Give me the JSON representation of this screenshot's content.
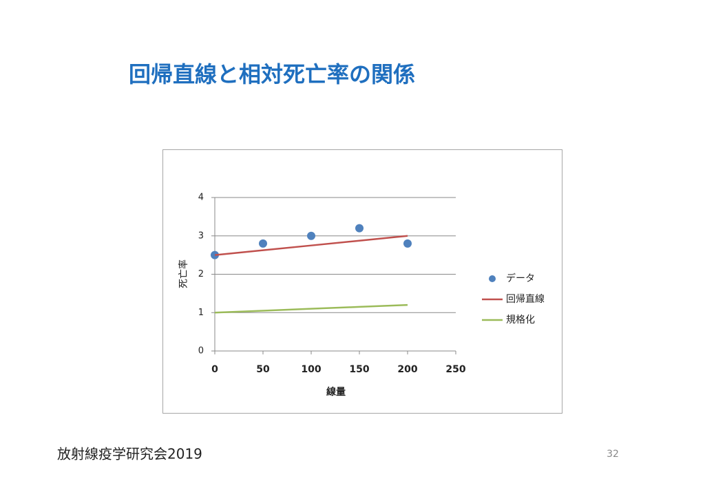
{
  "slide": {
    "title": "回帰直線と相対死亡率の関係",
    "footer": "放射線疫学研究会2019",
    "page_number": "32"
  },
  "chart_data": {
    "type": "scatter",
    "x_label": "線量",
    "y_label": "死亡率",
    "x": [
      0,
      50,
      100,
      150,
      200
    ],
    "series": [
      {
        "name": "データ",
        "color": "#4f81bd",
        "mode": "markers",
        "values": [
          2.5,
          2.8,
          3.0,
          3.2,
          2.8
        ]
      },
      {
        "name": "回帰直線",
        "color": "#c0504d",
        "mode": "lines",
        "values": [
          2.5,
          2.625,
          2.75,
          2.875,
          3.0
        ]
      },
      {
        "name": "規格化",
        "color": "#9bbb59",
        "mode": "lines",
        "values": [
          1.0,
          1.05,
          1.1,
          1.15,
          1.2
        ]
      }
    ],
    "xlim": [
      0,
      250
    ],
    "xticks": [
      0,
      50,
      100,
      150,
      200,
      250
    ],
    "ylim": [
      0,
      4
    ],
    "yticks": [
      0,
      1,
      2,
      3,
      4
    ],
    "grid": true,
    "legend": "right"
  }
}
